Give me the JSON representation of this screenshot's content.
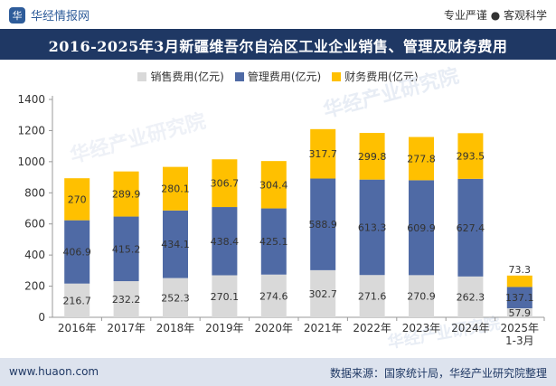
{
  "header": {
    "brand": "华经情报网",
    "logo_glyph": "华",
    "tagline": "专业严谨 ● 客观科学"
  },
  "title": "2016-2025年3月新疆维吾尔自治区工业企业销售、管理及财务费用",
  "footer": {
    "website": "www.huaon.com",
    "source": "数据来源：国家统计局，华经产业研究院整理"
  },
  "watermark": {
    "cn": "华经产业研究院",
    "url": "www.huaon.com"
  },
  "colors": {
    "sales": "#d9d9d9",
    "management": "#4f6aa5",
    "finance": "#ffc000",
    "title_bg": "#1f3864",
    "footer_bg": "#dde3ee"
  },
  "chart_data": {
    "type": "bar",
    "stacked": true,
    "categories": [
      "2016年",
      "2017年",
      "2018年",
      "2019年",
      "2020年",
      "2021年",
      "2022年",
      "2023年",
      "2024年",
      "2025年\n1-3月"
    ],
    "series": [
      {
        "name": "销售费用(亿元)",
        "color": "#d9d9d9",
        "values": [
          216.7,
          232.2,
          252.3,
          270.1,
          274.6,
          302.7,
          271.6,
          270.9,
          262.3,
          57.9
        ]
      },
      {
        "name": "管理费用(亿元)",
        "color": "#4f6aa5",
        "values": [
          406.9,
          415.2,
          434.1,
          438.4,
          425.1,
          588.9,
          613.3,
          609.9,
          627.4,
          137.1
        ]
      },
      {
        "name": "财务费用(亿元)",
        "color": "#ffc000",
        "values": [
          270,
          289.9,
          280.1,
          306.7,
          304.4,
          317.7,
          299.8,
          277.8,
          293.5,
          73.3
        ]
      }
    ],
    "ylim": [
      0,
      1400
    ],
    "yticks": [
      0,
      200,
      400,
      600,
      800,
      1000,
      1200,
      1400
    ],
    "legend_position": "top-center",
    "grid": false
  }
}
